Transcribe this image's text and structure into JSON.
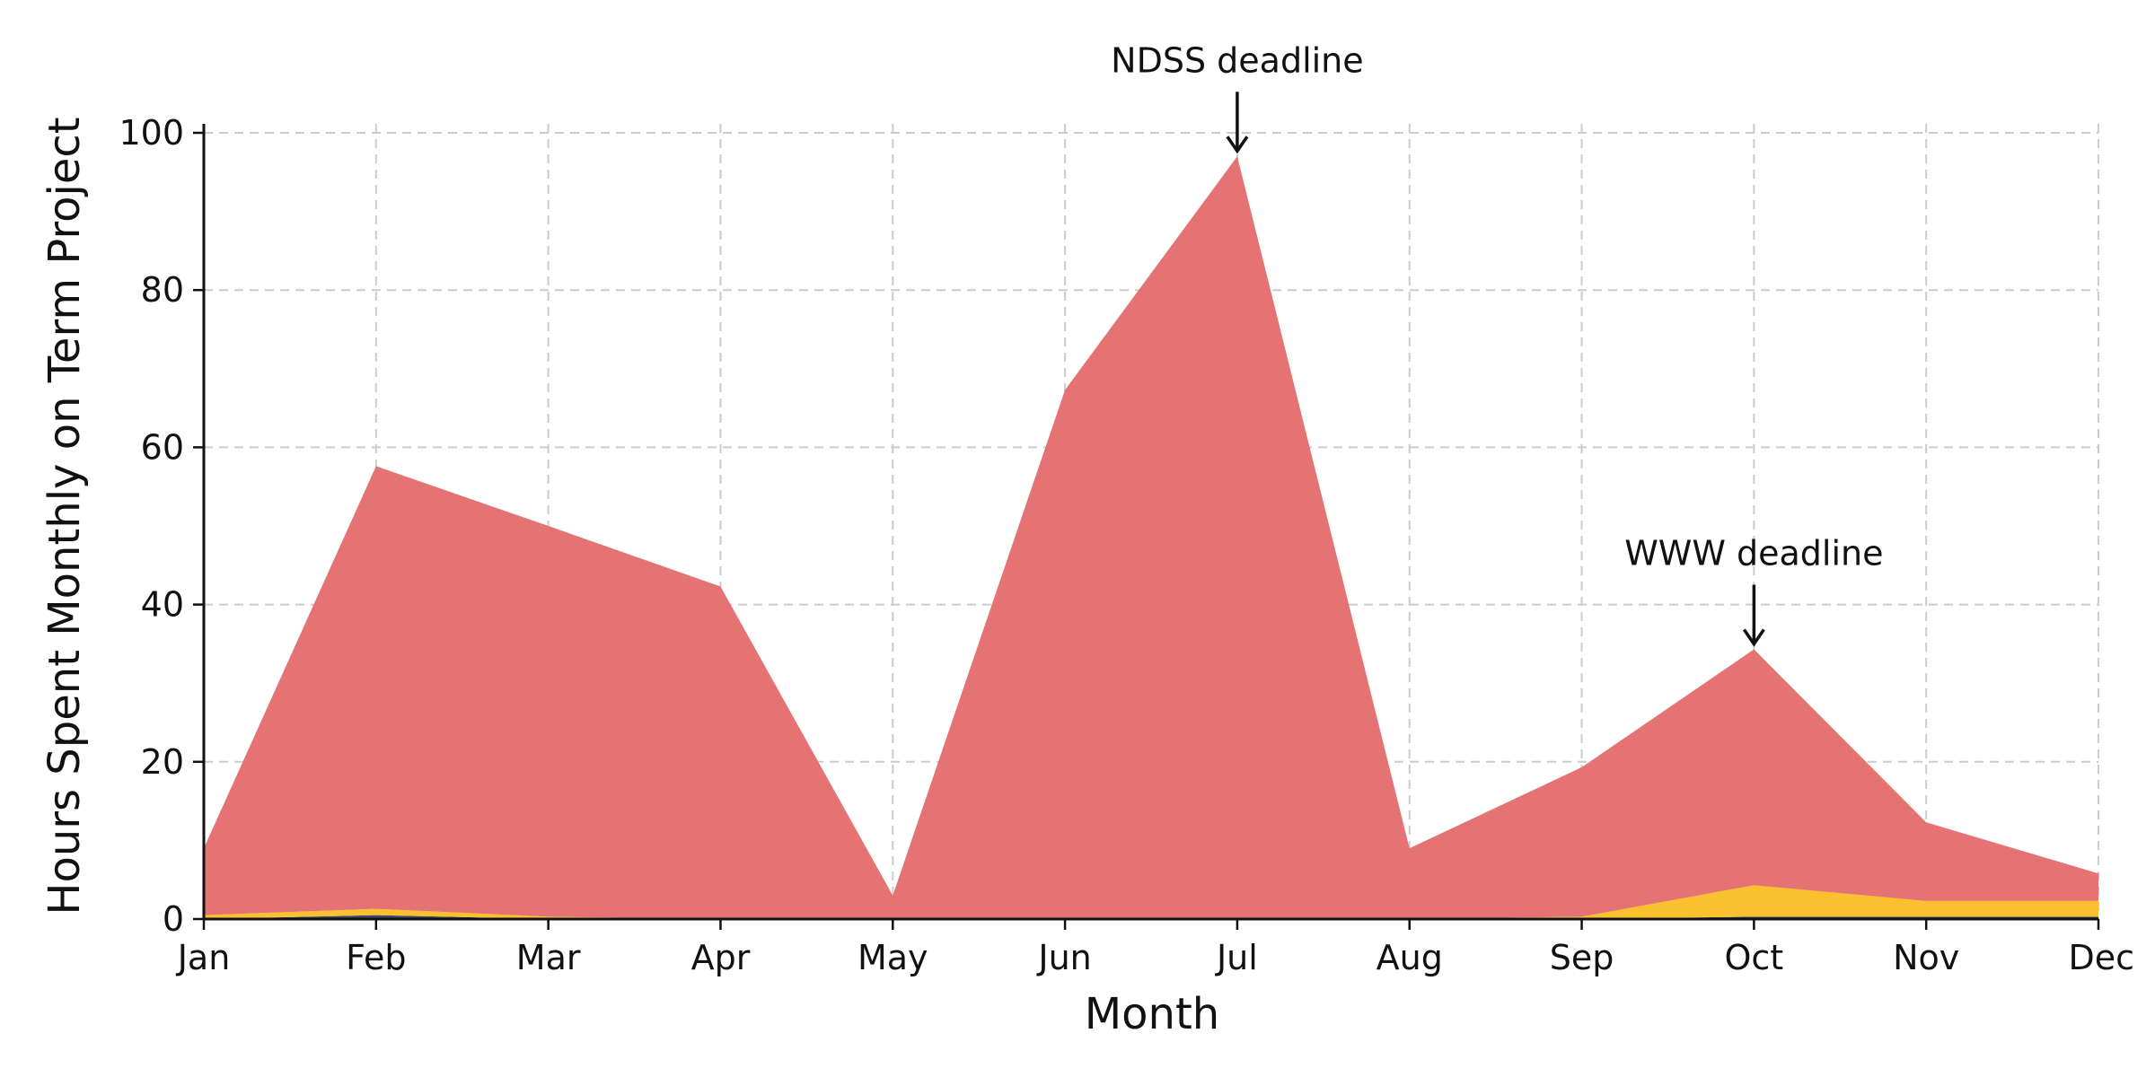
{
  "chart_data": {
    "type": "area",
    "stacked": true,
    "title": "",
    "xlabel": "Month",
    "ylabel": "Hours Spent Monthly on Term Project",
    "categories": [
      "Jan",
      "Feb",
      "Mar",
      "Apr",
      "May",
      "Jun",
      "Jul",
      "Aug",
      "Sep",
      "Oct",
      "Nov",
      "Dec"
    ],
    "ylim": [
      0,
      100
    ],
    "yticks": [
      0,
      20,
      40,
      60,
      80,
      100
    ],
    "grid": true,
    "series": [
      {
        "color": "#3b4a6b",
        "values": [
          0,
          0.5,
          0,
          0,
          0,
          0,
          0,
          0,
          0,
          0.3,
          0.3,
          0.3
        ]
      },
      {
        "color": "#fbc02d",
        "values": [
          0.5,
          0.8,
          0.3,
          0,
          0,
          0,
          0,
          0,
          0.3,
          4.0,
          2.0,
          2.0
        ]
      },
      {
        "color": "#e57373",
        "values": [
          8.5,
          56.3,
          49.7,
          42.3,
          3.0,
          67.3,
          97.0,
          9.0,
          19.0,
          30.0,
          10.0,
          3.5
        ]
      }
    ],
    "annotations": [
      {
        "text": "NDSS deadline",
        "category": "Jul",
        "value": 97
      },
      {
        "text": "WWW deadline",
        "category": "Oct",
        "value": 34.3
      }
    ]
  }
}
